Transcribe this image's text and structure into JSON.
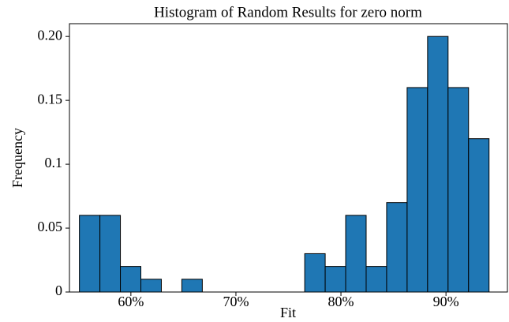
{
  "chart_data": {
    "type": "histogram",
    "title": "Histogram of Random Results for zero norm",
    "xlabel": "Fit",
    "ylabel": "Frequency",
    "bins": [
      55.1,
      57.05,
      59.0,
      60.95,
      62.9,
      64.85,
      66.8,
      68.75,
      70.7,
      72.65,
      74.6,
      76.55,
      78.5,
      80.45,
      82.4,
      84.35,
      86.3,
      88.25,
      90.2,
      92.15,
      94.1
    ],
    "values": [
      0.06,
      0.06,
      0.02,
      0.01,
      0,
      0.01,
      0,
      0,
      0,
      0,
      0,
      0.03,
      0.02,
      0.06,
      0.02,
      0.07,
      0.16,
      0.2,
      0.16,
      0.12
    ],
    "color": "#1f77b4",
    "xlim": [
      54.15,
      95.85
    ],
    "ylim": [
      0,
      0.21
    ],
    "xticks": [
      {
        "value": 60,
        "label": "60%"
      },
      {
        "value": 70,
        "label": "70%"
      },
      {
        "value": 80,
        "label": "80%"
      },
      {
        "value": 90,
        "label": "90%"
      }
    ],
    "yticks": [
      0,
      0.05,
      0.1,
      0.15,
      {
        "value": 0.2,
        "label": "0.20"
      }
    ]
  }
}
